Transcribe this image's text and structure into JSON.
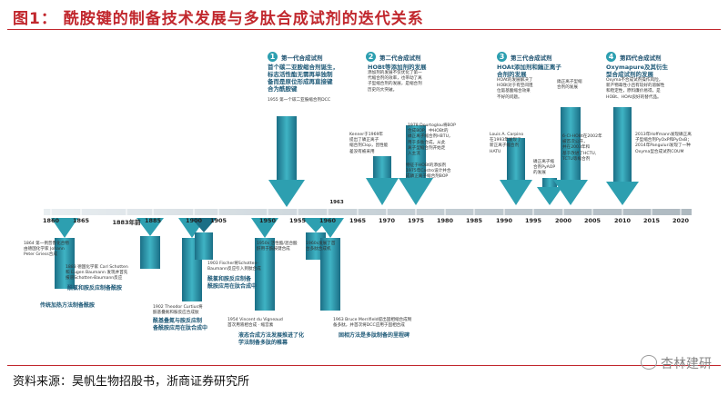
{
  "title": "图1：  酰胺键的制备技术发展与多肽合成试剂的迭代关系",
  "source": "资料来源：昊帆生物招股书，浙商证券研究所",
  "watermark": "杏林建研",
  "colors": {
    "accent": "#c1272d",
    "teal": "#2d9fb0",
    "dark_teal": "#1b6f86"
  },
  "timeline": {
    "ticks": [
      "1860",
      "1865",
      "1883年前",
      "1885",
      "1900",
      "1905",
      "1950",
      "1955",
      "1960",
      "1965",
      "1970",
      "1975",
      "1980",
      "1985",
      "1990",
      "1995",
      "2000",
      "2005",
      "2010",
      "2015",
      "2020"
    ],
    "extra_1963": "1963"
  },
  "generations": [
    {
      "num": "1",
      "title": "第一代合成试剂",
      "body": [
        "首个碳二亚胺缩合剂诞生，",
        "标志活性酯无需再单独制",
        "备而是原位形成再直接键",
        "合为酰胺键"
      ],
      "note": "1955 第一个碳二亚胺缩合剂DCC"
    },
    {
      "num": "2",
      "title": "第二代合成试剂",
      "body": [
        "HOBt等添加剂的发展",
        "添加剂的发展不仅优化了第一",
        "代缩合剂的效率，也带动了离",
        "子型缩合剂的发展，是缩合剂",
        "历史的大突破。"
      ],
      "notes_a": [
        "Kenner于1969年",
        "提出了磷正离子",
        "缩合剂Clop，因性能",
        "差没有被采用"
      ],
      "notes_b": [
        "1978 Dourtoglou将BOP",
        "合成BOP，中HOBt的",
        "磷正离子缩合剂HBTU，",
        "用于多肽合成，从此",
        "离子型缩合剂开始走",
        "入主流"
      ],
      "notes_c": [
        "特征于HOBt的添加剂",
        "1975年Castro设计并合",
        "成磷正离子缩合剂BOP"
      ]
    },
    {
      "num": "3",
      "title": "第三代合成试剂",
      "body": [
        "HOAt添加剂和鎓正离子",
        "合剂的发展",
        "HOAt的发展解决了",
        "HOBt对于有空间阻",
        "位氨基酸缩合效果",
        "不好的问题。"
      ],
      "notes_a": [
        "Louis A. Carpino",
        "在1993年发现了",
        "新正离子缩合剂",
        "HATU"
      ],
      "notes_b": [
        "鎓正离子型缩",
        "合剂的发展"
      ],
      "notes_c": [
        "6-Cl-HOBt在2002年",
        "被首次公开，",
        "并在2003年和",
        "基于改进了HCTU,",
        "TCTU等缩合剂"
      ],
      "notes_d": [
        "磷正离子缩",
        "合剂PyAOP",
        "的发展"
      ]
    },
    {
      "num": "4",
      "title": "第四代合成试剂",
      "body": [
        "Oxymapure及其衍生",
        "型合成试剂的发展",
        "Oxyma不合成试剂操作风险，",
        "新产物毒性小且有较好的溶解性",
        "和稳定性，原料廉价易得，是",
        "HOBt、HOAt良好的替代品。"
      ],
      "notes": [
        "2013年Hoffmann发现磷正离",
        "子型缩合剂PyOxP和PyOxB；",
        "2014年Panguluri发现了一种",
        "Oxyma型合成试剂COUM"
      ]
    }
  ],
  "below": {
    "b1864": [
      "1864 第一例普鲁化合物",
      "由德国化学家 Johann",
      "Peter Griess合成"
    ],
    "b1883": [
      "1883 德国化学家 Carl Schotten",
      "和 Eugen Baumann 发现并首先",
      "报道Schotten-Baumann反应"
    ],
    "b1883_big": [
      "酰氯和胺反应制备酰胺"
    ],
    "b_trad": "传统加热方法制备酰胺",
    "b1903": [
      "1903 Fischer将Schotten-",
      "Baumann反应引入到肽合成"
    ],
    "b1903_big": [
      "酰氯和胺反应制备",
      "酰胺应用在肽合成中"
    ],
    "b1902": [
      "1902 Theodor Curtius将",
      "酰基叠氮和胺反应合成肽"
    ],
    "b1902_big": [
      "酰基叠氮与胺反应制",
      "备酰胺应用在肽合成中"
    ],
    "b1950": [
      "1950s 活性酯/混合酸",
      "酐用于酰胺键合成"
    ],
    "b1960": [
      "1960s发展了首",
      "台多肽合成机"
    ],
    "b1954": [
      "1954 Vincent du Vigneaud",
      "首次用液相合成 · 缩宫素"
    ],
    "b1954_big": [
      "液态合成方法发展推进了化",
      "学法制备多肽的帷幕"
    ],
    "b1963": [
      "1963 Bruce Merrifield提出固相缩合成制",
      "备多肽，并首次将DCC应用于固相合成"
    ],
    "b1963_big": [
      "固相方法是多肽制备的里程碑"
    ]
  }
}
